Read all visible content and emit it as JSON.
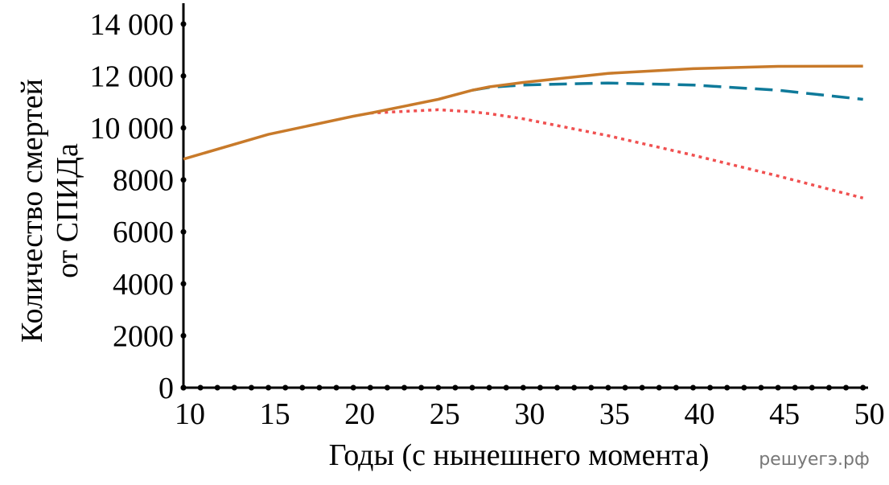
{
  "chart_data": {
    "type": "line",
    "xlabel": "Годы (с нынешнего момента)",
    "ylabel": [
      "Количество смертей",
      "от СПИДа"
    ],
    "watermark": "решуегэ.рф",
    "x": [
      10,
      15,
      20,
      21,
      25,
      27,
      28,
      30,
      35,
      40,
      45,
      50
    ],
    "series": [
      {
        "color": "#0f7a9a",
        "dash": "22 10",
        "values": [
          null,
          null,
          null,
          null,
          null,
          11450,
          11560,
          11650,
          11730,
          11650,
          11450,
          11100
        ]
      },
      {
        "color": "#f05050",
        "dash": "4 5",
        "values": [
          null,
          null,
          null,
          10570,
          10700,
          10620,
          10550,
          10350,
          9700,
          8950,
          8150,
          7300
        ]
      },
      {
        "color": "#c87a2a",
        "dash": "none",
        "values": [
          8800,
          9750,
          10450,
          10570,
          11100,
          11450,
          11580,
          11750,
          12100,
          12280,
          12370,
          12380
        ]
      }
    ],
    "xlim": [
      10,
      50.3
    ],
    "ylim": [
      0,
      14800
    ],
    "xticks": [
      10,
      15,
      20,
      25,
      30,
      35,
      40,
      45,
      50
    ],
    "xminorticks": [
      10,
      11,
      12,
      13,
      14,
      15,
      16,
      17,
      18,
      19,
      20,
      21,
      22,
      23,
      24,
      25,
      26,
      27,
      28,
      29,
      30,
      31,
      32,
      33,
      34,
      35,
      36,
      37,
      38,
      39,
      40,
      41,
      42,
      43,
      44,
      45,
      46,
      47,
      48,
      49,
      50
    ],
    "yticks": [
      0,
      2000,
      4000,
      6000,
      8000,
      {
        "value": 10000,
        "label": "10 000"
      },
      {
        "value": 12000,
        "label": "12 000"
      },
      {
        "value": 14000,
        "label": "14 000"
      }
    ]
  }
}
